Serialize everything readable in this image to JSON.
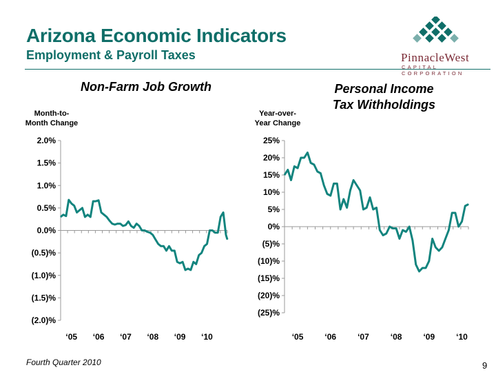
{
  "header": {
    "title": "Arizona Economic Indicators",
    "subtitle": "Employment & Payroll Taxes"
  },
  "logo": {
    "name": "PinnacleWest",
    "tagline": "CAPITAL CORPORATION",
    "color": "#7a2a35",
    "mark_color": "#0f6e68"
  },
  "colors": {
    "accent": "#0f6e68",
    "series": "#12847e"
  },
  "footer": {
    "text": "Fourth Quarter 2010",
    "page_number": "9"
  },
  "chart_data": [
    {
      "type": "line",
      "title": "Non-Farm Job Growth",
      "ylabel": "Month-to-\nMonth Change",
      "ylim": [
        -2.0,
        2.0
      ],
      "yticks": [
        2.0,
        1.5,
        1.0,
        0.5,
        0.0,
        -0.5,
        -1.0,
        -1.5,
        -2.0
      ],
      "ytick_labels": [
        "2.0%",
        "1.5%",
        "1.0%",
        "0.5%",
        "0.0%",
        "(0.5)%",
        "(1.0)%",
        "(1.5)%",
        "(2.0)%"
      ],
      "xlim": [
        2004.6,
        2010.75
      ],
      "xticks": [
        2005,
        2006,
        2007,
        2008,
        2009,
        2010
      ],
      "xtick_labels": [
        "‘05",
        "‘06",
        "‘07",
        "‘08",
        "‘09",
        "‘10"
      ],
      "grid": false,
      "series": [
        {
          "x": [
            2004.6,
            2004.7,
            2004.8,
            2004.9,
            2005.0,
            2005.1,
            2005.2,
            2005.3,
            2005.4,
            2005.5,
            2005.6,
            2005.7,
            2005.8,
            2005.9,
            2006.0,
            2006.1,
            2006.2,
            2006.3,
            2006.4,
            2006.5,
            2006.6,
            2006.7,
            2006.8,
            2006.9,
            2007.0,
            2007.1,
            2007.2,
            2007.3,
            2007.4,
            2007.5,
            2007.6,
            2007.7,
            2007.8,
            2007.9,
            2008.0,
            2008.1,
            2008.2,
            2008.3,
            2008.4,
            2008.5,
            2008.6,
            2008.7,
            2008.8,
            2008.9,
            2009.0,
            2009.1,
            2009.2,
            2009.3,
            2009.4,
            2009.5,
            2009.6,
            2009.7,
            2009.8,
            2009.9,
            2010.0,
            2010.1,
            2010.2,
            2010.3,
            2010.4,
            2010.5,
            2010.6,
            2010.7,
            2010.75
          ],
          "y": [
            0.3,
            0.35,
            0.32,
            0.68,
            0.6,
            0.55,
            0.4,
            0.45,
            0.5,
            0.3,
            0.35,
            0.3,
            0.65,
            0.65,
            0.67,
            0.4,
            0.35,
            0.3,
            0.22,
            0.15,
            0.13,
            0.15,
            0.15,
            0.1,
            0.12,
            0.2,
            0.1,
            0.06,
            0.15,
            0.1,
            0.0,
            0.0,
            -0.03,
            -0.05,
            -0.1,
            -0.2,
            -0.3,
            -0.35,
            -0.35,
            -0.45,
            -0.35,
            -0.45,
            -0.45,
            -0.7,
            -0.73,
            -0.7,
            -0.88,
            -0.85,
            -0.88,
            -0.7,
            -0.75,
            -0.55,
            -0.5,
            -0.35,
            -0.3,
            0.0,
            0.0,
            -0.05,
            -0.05,
            0.3,
            0.4,
            -0.1,
            -0.2
          ]
        }
      ]
    },
    {
      "type": "line",
      "title": "Personal Income\nTax Withholdings",
      "ylabel": "Year-over-\nYear Change",
      "ylim": [
        -25,
        25
      ],
      "yticks": [
        25,
        20,
        15,
        10,
        5,
        0,
        -5,
        -10,
        -15,
        -20,
        -25
      ],
      "ytick_labels": [
        "25%",
        "20%",
        "15%",
        "10%",
        "5%",
        "0%",
        "(5)%",
        "(10)%",
        "(15)%",
        "(20)%",
        "(25)%"
      ],
      "xlim": [
        2004.6,
        2010.2
      ],
      "xticks": [
        2005,
        2006,
        2007,
        2008,
        2009,
        2010
      ],
      "xtick_labels": [
        "‘05",
        "‘06",
        "‘07",
        "‘08",
        "‘09",
        "‘10"
      ],
      "grid": false,
      "series": [
        {
          "x": [
            2004.6,
            2004.7,
            2004.8,
            2004.9,
            2005.0,
            2005.1,
            2005.2,
            2005.3,
            2005.4,
            2005.5,
            2005.6,
            2005.7,
            2005.8,
            2005.9,
            2006.0,
            2006.1,
            2006.2,
            2006.3,
            2006.4,
            2006.5,
            2006.6,
            2006.7,
            2006.8,
            2006.9,
            2007.0,
            2007.1,
            2007.2,
            2007.3,
            2007.4,
            2007.5,
            2007.6,
            2007.7,
            2007.8,
            2007.9,
            2008.0,
            2008.1,
            2008.2,
            2008.3,
            2008.4,
            2008.5,
            2008.6,
            2008.7,
            2008.8,
            2008.9,
            2009.0,
            2009.1,
            2009.2,
            2009.3,
            2009.4,
            2009.5,
            2009.6,
            2009.7,
            2009.8,
            2009.9,
            2010.0,
            2010.1,
            2010.2
          ],
          "y": [
            15,
            16.5,
            13.5,
            17.5,
            17,
            20,
            20,
            21.5,
            18.5,
            18,
            16,
            15.5,
            12,
            9.5,
            9,
            12.5,
            12.5,
            5,
            8,
            5.5,
            10.5,
            13.5,
            12,
            10.5,
            5,
            5.5,
            8.5,
            5,
            5.5,
            -1,
            -2.5,
            -2,
            0,
            -0.5,
            -0.5,
            -3.5,
            -1,
            -1.5,
            0,
            -4,
            -11,
            -13,
            -12,
            -12,
            -10,
            -3.5,
            -6,
            -7,
            -6,
            -3.5,
            -1,
            4,
            4,
            0,
            1.5,
            6,
            6.5
          ]
        }
      ]
    }
  ]
}
